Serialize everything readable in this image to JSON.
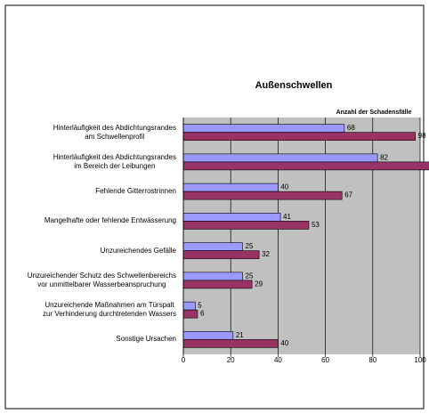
{
  "chart_data": {
    "type": "bar",
    "orientation": "horizontal",
    "title": "Außenschwellen",
    "x_label": "Anzahl der Schadensfälle",
    "categories": [
      "Hinterläufigkeit des Abdichtungsrandes\nam Schwellenprofil",
      "Hinterläufigkeit des Abdichtungsrandes\nim Bereich der Leibungen",
      "Fehlende Gitterrostrinnen",
      "Mangelhafte oder fehlende Entwässerung",
      "Unzureichendes Gefälle",
      "Unzureichender Schutz des Schwellenbereichs\nvor unmittelbarer Wasserbeanspruchung",
      "Unzureichende Maßnahmen am Türspalt\nzur Verhinderung durchtretenden Wassers",
      "Sonstige Ursachen"
    ],
    "series": [
      {
        "color": "#9999ff",
        "values": [
          68,
          82,
          40,
          41,
          25,
          25,
          5,
          21
        ]
      },
      {
        "color": "#993366",
        "values": [
          98,
          110,
          67,
          53,
          32,
          29,
          6,
          40
        ]
      }
    ],
    "xlim": [
      0,
      100
    ],
    "xticks": [
      0,
      20,
      40,
      60,
      80,
      100
    ],
    "grid": true
  }
}
